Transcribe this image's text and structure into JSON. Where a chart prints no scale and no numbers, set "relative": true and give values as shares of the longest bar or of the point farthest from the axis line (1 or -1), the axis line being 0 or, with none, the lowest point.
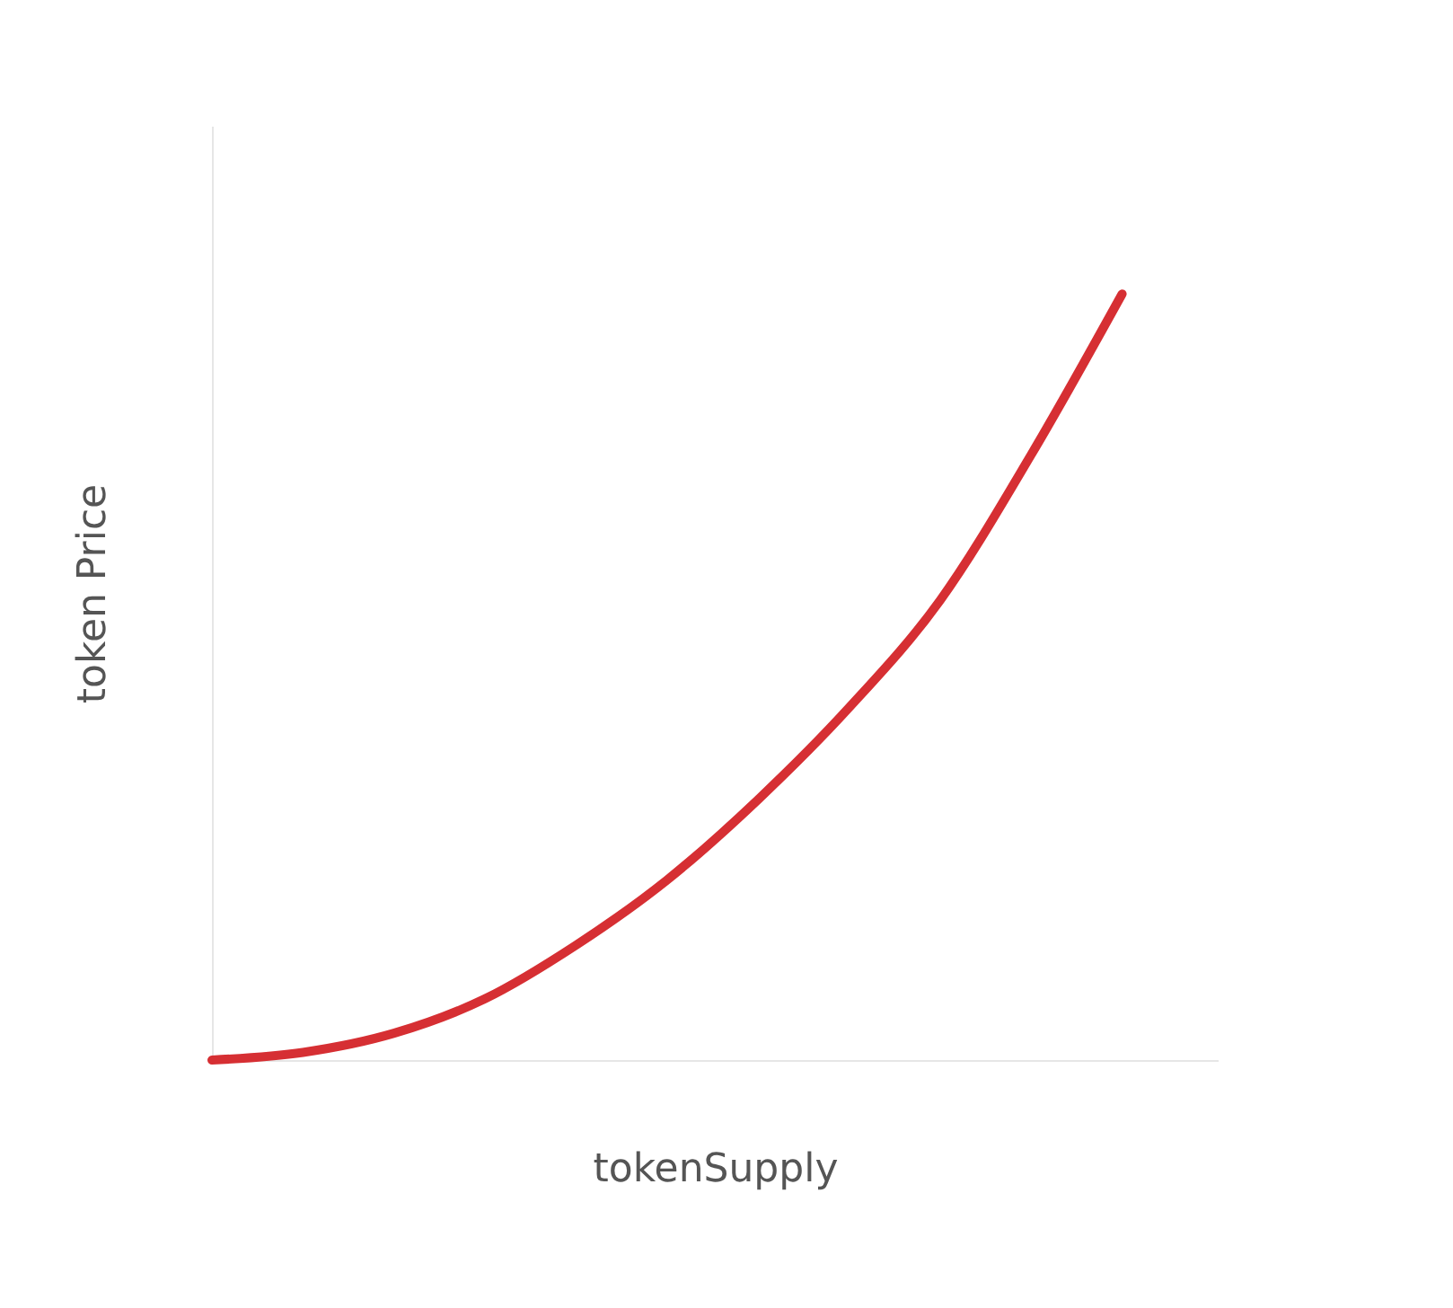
{
  "chart_data": {
    "type": "line",
    "relative": true,
    "xlabel": "tokenSupply",
    "ylabel": "token Price",
    "categories": [
      null,
      null,
      null,
      null,
      null,
      null,
      null,
      null,
      null,
      null,
      null
    ],
    "series": [
      {
        "color": "#d62f33",
        "values": [
          0,
          0.01,
          0.035,
          0.08,
          0.15,
          0.235,
          0.34,
          0.46,
          0.6,
          0.79,
          1
        ]
      }
    ],
    "grid": false,
    "legend": false,
    "marker": "none",
    "line_style": "solid"
  }
}
